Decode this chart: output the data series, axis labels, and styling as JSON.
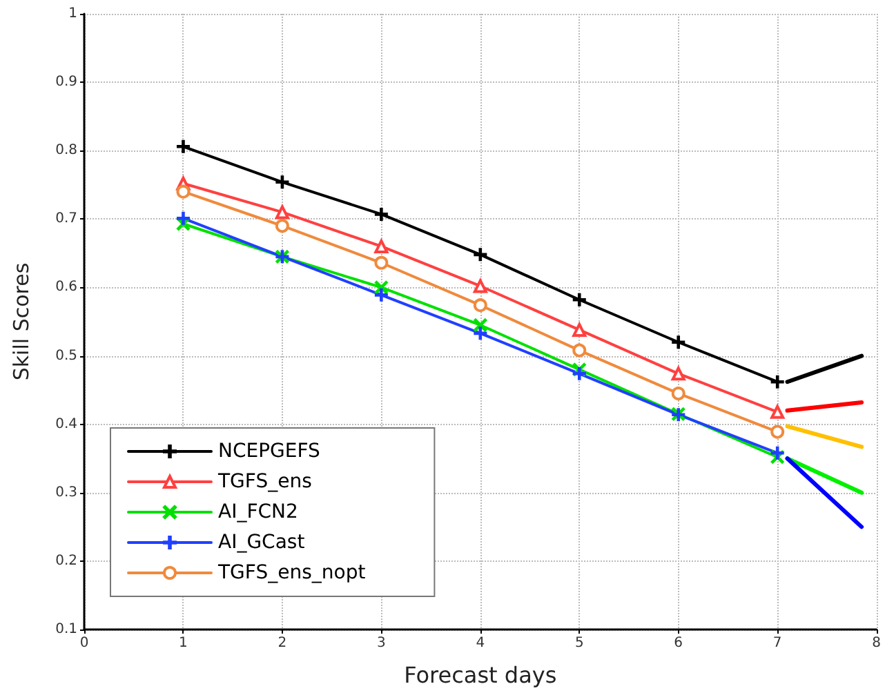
{
  "chart_data": {
    "type": "line",
    "xlabel": "Forecast days",
    "ylabel": "Skill Scores",
    "xlim": [
      0,
      8
    ],
    "xticks": [
      0,
      1,
      2,
      3,
      4,
      5,
      6,
      7,
      8
    ],
    "ylim": [
      0.1,
      1
    ],
    "yticks": [
      0.1,
      0.2,
      0.3,
      0.4,
      0.5,
      0.6,
      0.7,
      0.8,
      0.9,
      1
    ],
    "grid": true,
    "legend": "bottom left",
    "line_style": "solid",
    "series": [
      {
        "name": "NCEPGEFS",
        "color": "#000000",
        "marker": "cross",
        "x": [
          1,
          2,
          3,
          4,
          5,
          6,
          7
        ],
        "values": [
          0.806,
          0.754,
          0.707,
          0.648,
          0.582,
          0.52,
          0.462
        ]
      },
      {
        "name": "TGFS_ens",
        "color": "#ff4040",
        "marker": "triangle",
        "x": [
          1,
          2,
          3,
          4,
          5,
          6,
          7
        ],
        "values": [
          0.752,
          0.71,
          0.66,
          0.602,
          0.538,
          0.474,
          0.418
        ]
      },
      {
        "name": "AI_FCN2",
        "color": "#00e000",
        "marker": "x",
        "x": [
          1,
          2,
          3,
          4,
          5,
          6,
          7
        ],
        "values": [
          0.693,
          0.645,
          0.6,
          0.545,
          0.48,
          0.415,
          0.352
        ]
      },
      {
        "name": "AI_GCast",
        "color": "#2040ff",
        "marker": "cross",
        "x": [
          1,
          2,
          3,
          4,
          5,
          6,
          7
        ],
        "values": [
          0.701,
          0.645,
          0.589,
          0.533,
          0.474,
          0.414,
          0.358
        ]
      },
      {
        "name": "TGFS_ens_nopt",
        "color": "#f08a3c",
        "marker": "circle",
        "x": [
          1,
          2,
          3,
          4,
          5,
          6,
          7
        ],
        "values": [
          0.74,
          0.69,
          0.636,
          0.574,
          0.508,
          0.445,
          0.389
        ]
      },
      {
        "color": "#000000",
        "marker": "none",
        "x": [
          7.1,
          7.85
        ],
        "values": [
          0.462,
          0.5
        ]
      },
      {
        "color": "#ff0000",
        "marker": "none",
        "x": [
          7.1,
          7.85
        ],
        "values": [
          0.42,
          0.432
        ]
      },
      {
        "color": "#ffc000",
        "marker": "none",
        "x": [
          7.1,
          7.85
        ],
        "values": [
          0.397,
          0.367
        ]
      },
      {
        "color": "#00f000",
        "marker": "none",
        "x": [
          7.1,
          7.85
        ],
        "values": [
          0.35,
          0.3
        ]
      },
      {
        "color": "#0000ff",
        "marker": "none",
        "x": [
          7.1,
          7.85
        ],
        "values": [
          0.35,
          0.25
        ]
      }
    ]
  }
}
